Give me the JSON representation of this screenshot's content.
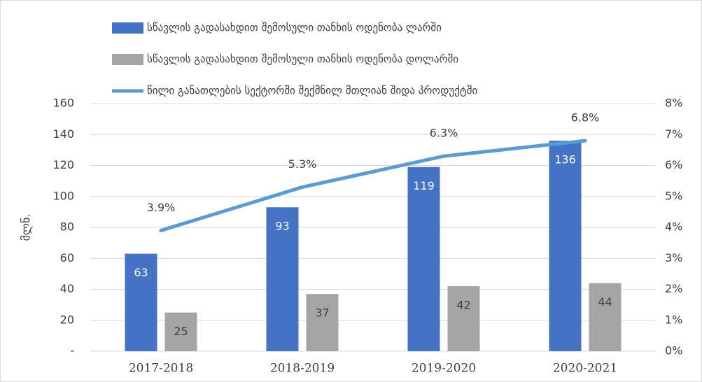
{
  "chart_data": {
    "type": "bar",
    "y_label": "მლნ.",
    "categories": [
      "2017-2018",
      "2018-2019",
      "2019-2020",
      "2020-2021"
    ],
    "series": [
      {
        "name": "სწავლის გადასახდით შემოსული თანხის ოდენობა ლარში",
        "color": "#4472c4",
        "values": [
          63,
          93,
          119,
          136
        ]
      },
      {
        "name": "სწავლის გადასახდით შემოსული თანხის ოდენობა დოლარში",
        "color": "#a5a5a5",
        "values": [
          25,
          37,
          42,
          44
        ]
      },
      {
        "name": "წილი განათლების სექტორში შექმნილ მთლიან შიდა პროდუქტში",
        "color": "#5b9bd5",
        "type": "line",
        "axis": "y2",
        "values": [
          3.9,
          5.3,
          6.3,
          6.8
        ],
        "value_labels": [
          "3.9%",
          "5.3%",
          "6.3%",
          "6.8%"
        ]
      }
    ],
    "ylim": [
      0,
      160
    ],
    "yticks": [
      {
        "value": 0,
        "label": "-"
      },
      20,
      40,
      60,
      80,
      100,
      120,
      140,
      160
    ],
    "y2lim": [
      0,
      8
    ],
    "y2ticks": [
      {
        "value": 0,
        "label": "0%"
      },
      {
        "value": 1,
        "label": "1%"
      },
      {
        "value": 2,
        "label": "2%"
      },
      {
        "value": 3,
        "label": "3%"
      },
      {
        "value": 4,
        "label": "4%"
      },
      {
        "value": 5,
        "label": "5%"
      },
      {
        "value": 6,
        "label": "6%"
      },
      {
        "value": 7,
        "label": "7%"
      },
      {
        "value": 8,
        "label": "8%"
      }
    ],
    "legend": "top-left"
  }
}
